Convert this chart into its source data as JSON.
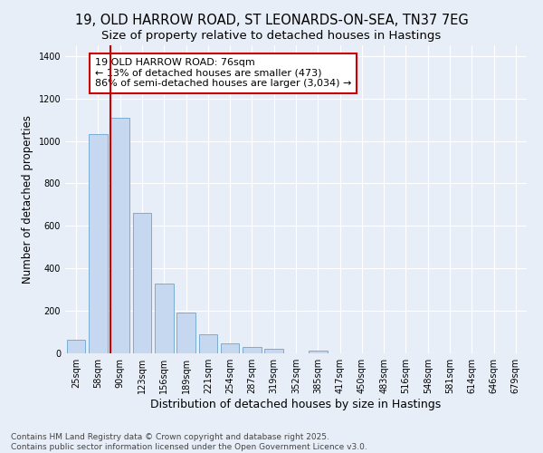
{
  "title_line1": "19, OLD HARROW ROAD, ST LEONARDS-ON-SEA, TN37 7EG",
  "title_line2": "Size of property relative to detached houses in Hastings",
  "xlabel": "Distribution of detached houses by size in Hastings",
  "ylabel": "Number of detached properties",
  "categories": [
    "25sqm",
    "58sqm",
    "90sqm",
    "123sqm",
    "156sqm",
    "189sqm",
    "221sqm",
    "254sqm",
    "287sqm",
    "319sqm",
    "352sqm",
    "385sqm",
    "417sqm",
    "450sqm",
    "483sqm",
    "516sqm",
    "548sqm",
    "581sqm",
    "614sqm",
    "646sqm",
    "679sqm"
  ],
  "values": [
    65,
    1030,
    1110,
    660,
    330,
    190,
    88,
    45,
    30,
    22,
    0,
    14,
    0,
    0,
    0,
    0,
    0,
    0,
    0,
    0,
    0
  ],
  "bar_color": "#c5d8f0",
  "bar_edge_color": "#7aadd4",
  "vline_x_index": 2,
  "vline_color": "#cc0000",
  "annotation_text": "19 OLD HARROW ROAD: 76sqm\n← 13% of detached houses are smaller (473)\n86% of semi-detached houses are larger (3,034) →",
  "annotation_box_color": "#ffffff",
  "annotation_box_edge": "#cc0000",
  "annotation_fontsize": 8,
  "ylim": [
    0,
    1450
  ],
  "yticks": [
    0,
    200,
    400,
    600,
    800,
    1000,
    1200,
    1400
  ],
  "background_color": "#e8eef7",
  "grid_color": "#ffffff",
  "footer_text": "Contains HM Land Registry data © Crown copyright and database right 2025.\nContains public sector information licensed under the Open Government Licence v3.0.",
  "title_fontsize": 10.5,
  "subtitle_fontsize": 9.5,
  "xlabel_fontsize": 9,
  "ylabel_fontsize": 8.5,
  "tick_fontsize": 7,
  "footer_fontsize": 6.5
}
